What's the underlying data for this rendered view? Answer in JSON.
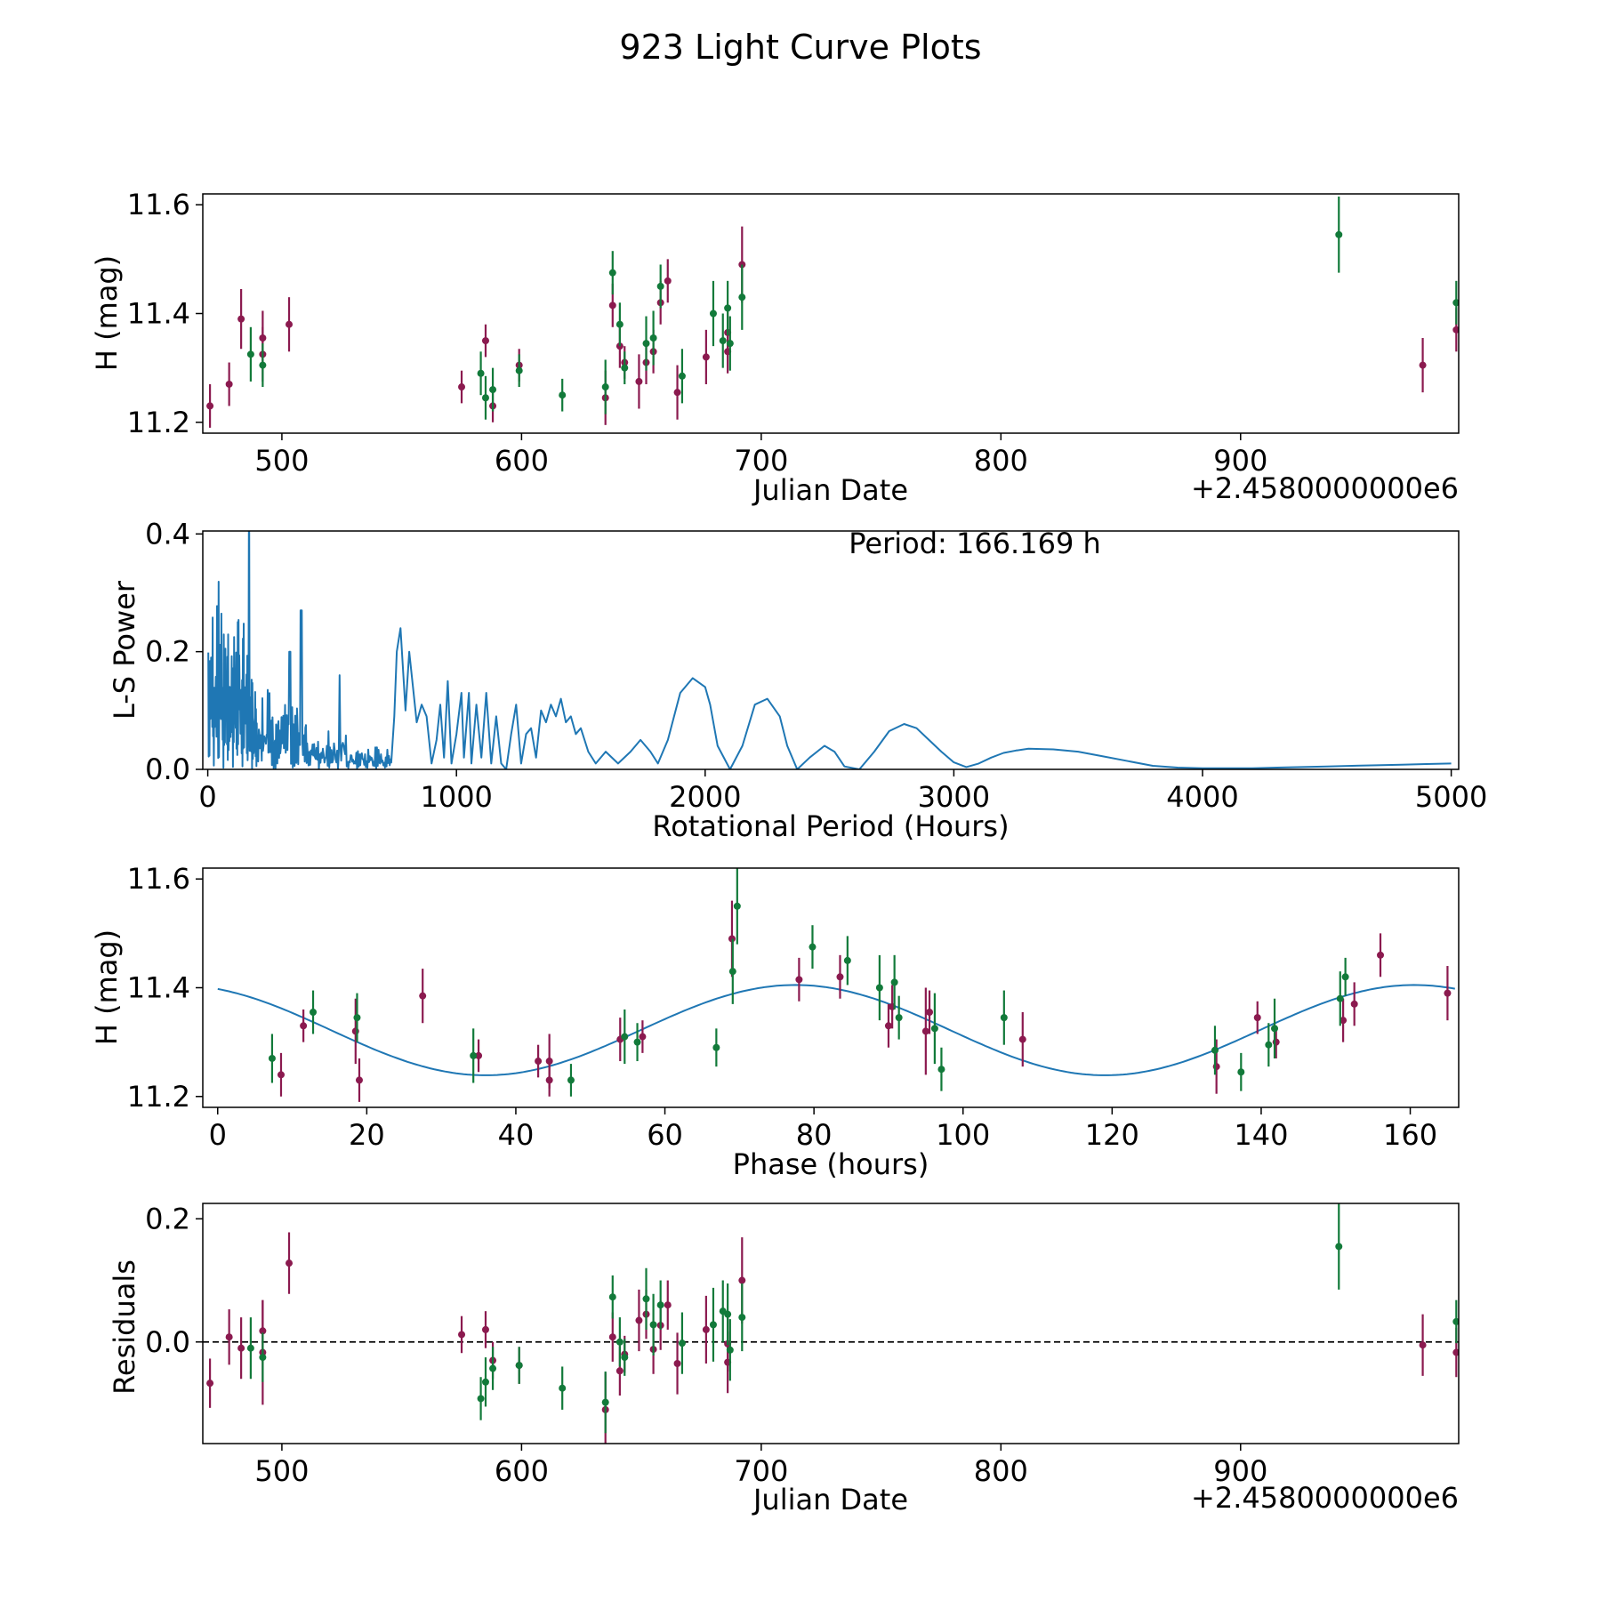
{
  "title": "923 Light Curve Plots",
  "colors": {
    "line": "#1f77b4",
    "green": "#127a3a",
    "maroon": "#8b1a4f",
    "axes": "#000000"
  },
  "panels": {
    "lightcurve": {
      "xlabel": "Julian Date",
      "ylabel": "H (mag)",
      "offset": "+2.4580000000e6",
      "xticks": [
        "500",
        "600",
        "700",
        "800",
        "900"
      ],
      "yticks": [
        "11.2",
        "11.4",
        "11.6"
      ]
    },
    "periodogram": {
      "xlabel": "Rotational Period (Hours)",
      "ylabel": "L-S Power",
      "annotation": "Period: 166.169 h",
      "xticks": [
        "0",
        "1000",
        "2000",
        "3000",
        "4000",
        "5000"
      ],
      "yticks": [
        "0.0",
        "0.2",
        "0.4"
      ]
    },
    "phase": {
      "xlabel": "Phase (hours)",
      "ylabel": "H (mag)",
      "xticks": [
        "0",
        "20",
        "40",
        "60",
        "80",
        "100",
        "120",
        "140",
        "160"
      ],
      "yticks": [
        "11.2",
        "11.4",
        "11.6"
      ]
    },
    "residuals": {
      "xlabel": "Julian Date",
      "ylabel": "Residuals",
      "offset": "+2.4580000000e6",
      "xticks": [
        "500",
        "600",
        "700",
        "800",
        "900"
      ],
      "yticks": [
        "0.0",
        "0.2"
      ]
    }
  },
  "chart_data": [
    {
      "type": "scatter",
      "title": "923 Light Curve Plots",
      "xlabel": "Julian Date",
      "ylabel": "H (mag)",
      "x_offset": 2458000.0,
      "xlim": [
        467,
        991
      ],
      "ylim": [
        11.18,
        11.62
      ],
      "xtick_values": [
        500,
        600,
        700,
        800,
        900
      ],
      "ytick_values": [
        11.2,
        11.4,
        11.6
      ],
      "series": [
        {
          "name": "maroon",
          "x": [
            470,
            478,
            483,
            492,
            492,
            503,
            575,
            585,
            588,
            599,
            635,
            638,
            641,
            643,
            649,
            652,
            655,
            658,
            661,
            665,
            677,
            686,
            686,
            692,
            976,
            990
          ],
          "y": [
            11.23,
            11.27,
            11.39,
            11.355,
            11.325,
            11.38,
            11.265,
            11.35,
            11.23,
            11.305,
            11.245,
            11.415,
            11.34,
            11.31,
            11.275,
            11.31,
            11.33,
            11.42,
            11.46,
            11.255,
            11.32,
            11.365,
            11.33,
            11.49,
            11.305,
            11.37
          ],
          "err": [
            0.04,
            0.04,
            0.055,
            0.05,
            0.05,
            0.05,
            0.03,
            0.03,
            0.03,
            0.03,
            0.05,
            0.04,
            0.04,
            0.03,
            0.05,
            0.04,
            0.04,
            0.04,
            0.04,
            0.05,
            0.05,
            0.04,
            0.04,
            0.07,
            0.05,
            0.04
          ]
        },
        {
          "name": "green",
          "x": [
            487,
            492,
            583,
            585,
            588,
            599,
            617,
            635,
            638,
            641,
            643,
            652,
            655,
            658,
            667,
            680,
            684,
            686,
            687,
            692,
            941,
            990
          ],
          "y": [
            11.325,
            11.305,
            11.29,
            11.245,
            11.26,
            11.295,
            11.25,
            11.265,
            11.475,
            11.38,
            11.3,
            11.345,
            11.355,
            11.45,
            11.285,
            11.4,
            11.35,
            11.41,
            11.345,
            11.43,
            11.545,
            11.42
          ],
          "err": [
            0.05,
            0.04,
            0.04,
            0.04,
            0.04,
            0.03,
            0.03,
            0.05,
            0.04,
            0.04,
            0.03,
            0.05,
            0.05,
            0.04,
            0.05,
            0.06,
            0.05,
            0.05,
            0.05,
            0.06,
            0.07,
            0.04
          ]
        }
      ]
    },
    {
      "type": "line",
      "xlabel": "Rotational Period (Hours)",
      "ylabel": "L-S Power",
      "annotation": "Period: 166.169 h",
      "xlim": [
        -20,
        5030
      ],
      "ylim": [
        0.0,
        0.405
      ],
      "xtick_values": [
        0,
        1000,
        2000,
        3000,
        4000,
        5000
      ],
      "ytick_values": [
        0.0,
        0.2,
        0.4
      ],
      "peak_period": 166.169,
      "x": [
        750,
        760,
        775,
        795,
        810,
        840,
        860,
        880,
        900,
        920,
        935,
        950,
        965,
        980,
        1000,
        1020,
        1030,
        1050,
        1060,
        1080,
        1100,
        1120,
        1140,
        1160,
        1180,
        1200,
        1220,
        1240,
        1260,
        1280,
        1300,
        1320,
        1340,
        1360,
        1380,
        1400,
        1420,
        1440,
        1460,
        1480,
        1500,
        1530,
        1560,
        1600,
        1650,
        1700,
        1740,
        1780,
        1810,
        1850,
        1900,
        1950,
        2000,
        2020,
        2050,
        2100,
        2150,
        2200,
        2250,
        2300,
        2330,
        2370,
        2420,
        2480,
        2520,
        2560,
        2620,
        2680,
        2740,
        2800,
        2850,
        2900,
        2950,
        3000,
        3050,
        3100,
        3150,
        3200,
        3250,
        3300,
        3400,
        3500,
        3600,
        3700,
        3800,
        3900,
        4000,
        4100,
        4200,
        4300,
        4400,
        4500,
        4600,
        4700,
        4800,
        4900,
        5000
      ],
      "y": [
        0.09,
        0.2,
        0.24,
        0.1,
        0.2,
        0.08,
        0.11,
        0.09,
        0.01,
        0.05,
        0.11,
        0.02,
        0.15,
        0.01,
        0.06,
        0.13,
        0.02,
        0.13,
        0.01,
        0.11,
        0.02,
        0.13,
        0.01,
        0.09,
        0.01,
        0.0,
        0.06,
        0.11,
        0.01,
        0.06,
        0.07,
        0.02,
        0.1,
        0.08,
        0.11,
        0.09,
        0.12,
        0.08,
        0.09,
        0.06,
        0.07,
        0.03,
        0.01,
        0.03,
        0.01,
        0.03,
        0.05,
        0.03,
        0.01,
        0.05,
        0.13,
        0.155,
        0.14,
        0.11,
        0.04,
        0.0,
        0.04,
        0.11,
        0.12,
        0.09,
        0.04,
        0.0,
        0.02,
        0.04,
        0.03,
        0.005,
        0.0,
        0.03,
        0.065,
        0.077,
        0.07,
        0.05,
        0.03,
        0.012,
        0.004,
        0.01,
        0.02,
        0.028,
        0.032,
        0.035,
        0.034,
        0.03,
        0.022,
        0.014,
        0.006,
        0.003,
        0.002,
        0.002,
        0.002,
        0.003,
        0.004,
        0.005,
        0.006,
        0.007,
        0.008,
        0.009,
        0.01
      ]
    },
    {
      "type": "scatter",
      "xlabel": "Phase (hours)",
      "ylabel": "H (mag)",
      "xlim": [
        -2,
        166.5
      ],
      "ylim": [
        11.18,
        11.62
      ],
      "xtick_values": [
        0,
        20,
        40,
        60,
        80,
        100,
        120,
        140,
        160
      ],
      "ytick_values": [
        11.2,
        11.4,
        11.6
      ],
      "model": {
        "mean": 11.322,
        "amplitude": 0.083,
        "period": 83.08,
        "peak_phase": 77.5
      },
      "series": [
        {
          "name": "maroon",
          "x": [
            8.5,
            11.5,
            18.5,
            19,
            27.5,
            35,
            43,
            44.5,
            44.5,
            54,
            57,
            69,
            78,
            83.5,
            90,
            90.5,
            95,
            95.5,
            108,
            134,
            139.5,
            142,
            151,
            152.5,
            156,
            165
          ],
          "y": [
            11.24,
            11.33,
            11.32,
            11.23,
            11.385,
            11.275,
            11.265,
            11.23,
            11.265,
            11.305,
            11.31,
            11.49,
            11.415,
            11.42,
            11.33,
            11.365,
            11.32,
            11.355,
            11.305,
            11.255,
            11.345,
            11.3,
            11.34,
            11.37,
            11.46,
            11.39
          ],
          "err": [
            0.04,
            0.03,
            0.06,
            0.04,
            0.05,
            0.03,
            0.03,
            0.03,
            0.05,
            0.04,
            0.03,
            0.07,
            0.04,
            0.04,
            0.04,
            0.04,
            0.08,
            0.04,
            0.05,
            0.05,
            0.03,
            0.03,
            0.04,
            0.04,
            0.04,
            0.05
          ]
        },
        {
          "name": "green",
          "x": [
            7.3,
            12.8,
            18.7,
            34.3,
            47.4,
            54.6,
            56.3,
            66.9,
            69.1,
            69.7,
            79.8,
            84.5,
            88.8,
            90.8,
            91.4,
            96.2,
            97.1,
            105.5,
            133.8,
            137.3,
            141.0,
            141.8,
            150.6,
            151.3
          ],
          "y": [
            11.27,
            11.355,
            11.345,
            11.275,
            11.23,
            11.31,
            11.3,
            11.29,
            11.43,
            11.55,
            11.475,
            11.45,
            11.4,
            11.41,
            11.345,
            11.325,
            11.25,
            11.345,
            11.285,
            11.245,
            11.295,
            11.325,
            11.38,
            11.42
          ],
          "err": [
            0.045,
            0.04,
            0.045,
            0.05,
            0.03,
            0.05,
            0.035,
            0.035,
            0.06,
            0.07,
            0.04,
            0.045,
            0.06,
            0.05,
            0.04,
            0.065,
            0.04,
            0.05,
            0.045,
            0.035,
            0.04,
            0.055,
            0.05,
            0.035
          ]
        }
      ]
    },
    {
      "type": "scatter",
      "xlabel": "Julian Date",
      "ylabel": "Residuals",
      "x_offset": 2458000.0,
      "xlim": [
        467,
        991
      ],
      "ylim": [
        -0.165,
        0.225
      ],
      "xtick_values": [
        500,
        600,
        700,
        800,
        900
      ],
      "ytick_values": [
        0.0,
        0.2
      ],
      "reference_line": 0.0,
      "series": [
        {
          "name": "maroon",
          "x": [
            470,
            478,
            483,
            492,
            492,
            503,
            575,
            585,
            588,
            599,
            635,
            638,
            641,
            643,
            649,
            652,
            655,
            658,
            661,
            665,
            677,
            686,
            686,
            692,
            976,
            990
          ],
          "y": [
            -0.067,
            0.008,
            -0.01,
            0.018,
            -0.017,
            0.128,
            0.012,
            0.02,
            -0.03,
            -0.038,
            -0.11,
            0.008,
            -0.047,
            -0.02,
            0.035,
            0.045,
            -0.012,
            0.027,
            0.06,
            -0.035,
            0.02,
            -0.003,
            -0.033,
            0.1,
            -0.005,
            -0.017
          ],
          "err": [
            0.04,
            0.045,
            0.05,
            0.05,
            0.085,
            0.05,
            0.03,
            0.03,
            0.03,
            0.03,
            0.06,
            0.04,
            0.04,
            0.03,
            0.05,
            0.04,
            0.04,
            0.04,
            0.04,
            0.05,
            0.055,
            0.045,
            0.05,
            0.07,
            0.05,
            0.04
          ]
        },
        {
          "name": "green",
          "x": [
            487,
            492,
            583,
            585,
            588,
            599,
            617,
            635,
            638,
            641,
            643,
            652,
            655,
            658,
            667,
            680,
            684,
            686,
            687,
            692,
            941,
            990
          ],
          "y": [
            -0.01,
            -0.025,
            -0.092,
            -0.065,
            -0.043,
            -0.038,
            -0.075,
            -0.098,
            0.073,
            0.0,
            -0.025,
            0.07,
            0.028,
            0.06,
            -0.002,
            0.028,
            0.05,
            0.045,
            -0.013,
            0.04,
            0.155,
            0.033
          ],
          "err": [
            0.05,
            0.04,
            0.035,
            0.04,
            0.035,
            0.03,
            0.035,
            0.05,
            0.035,
            0.04,
            0.03,
            0.05,
            0.05,
            0.04,
            0.05,
            0.06,
            0.05,
            0.05,
            0.05,
            0.055,
            0.07,
            0.035
          ]
        }
      ]
    }
  ]
}
